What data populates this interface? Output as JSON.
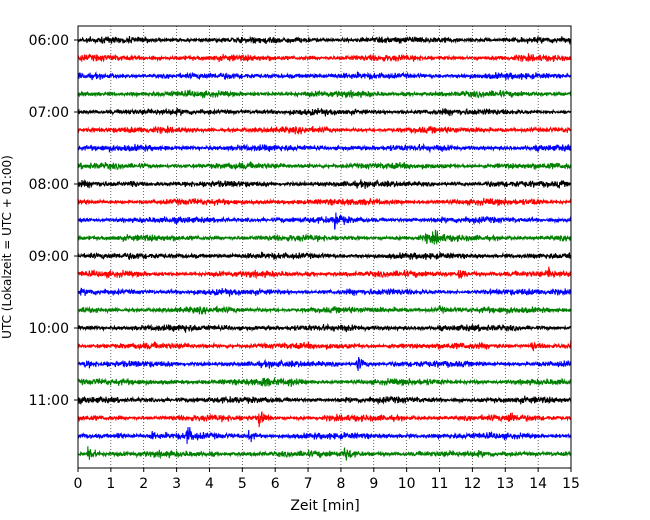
{
  "chart_data": {
    "type": "line",
    "title": "",
    "xlabel": "Zeit  [min]",
    "ylabel": "UTC (Lokalzeit = UTC + 01:00)",
    "xlim": [
      0,
      15
    ],
    "x_ticks": [
      "0",
      "1",
      "2",
      "3",
      "4",
      "5",
      "6",
      "7",
      "8",
      "9",
      "10",
      "11",
      "12",
      "13",
      "14",
      "15"
    ],
    "y_ticks": [
      "06:00",
      "07:00",
      "08:00",
      "09:00",
      "10:00",
      "11:00"
    ],
    "grid": "x",
    "trace_interval_min": 15,
    "colors": [
      "#000000",
      "#ff0000",
      "#0000ff",
      "#008000"
    ],
    "series": [
      {
        "start": "06:00",
        "color": "#000000",
        "events": []
      },
      {
        "start": "06:15",
        "color": "#ff0000",
        "events": []
      },
      {
        "start": "06:30",
        "color": "#0000ff",
        "events": []
      },
      {
        "start": "06:45",
        "color": "#008000",
        "events": []
      },
      {
        "start": "07:00",
        "color": "#000000",
        "events": []
      },
      {
        "start": "07:15",
        "color": "#ff0000",
        "events": []
      },
      {
        "start": "07:30",
        "color": "#0000ff",
        "events": []
      },
      {
        "start": "07:45",
        "color": "#008000",
        "events": []
      },
      {
        "start": "08:00",
        "color": "#000000",
        "events": [
          {
            "t": 1.6,
            "amp": 0.35
          },
          {
            "t": 14.6,
            "amp": 0.2
          }
        ]
      },
      {
        "start": "08:15",
        "color": "#ff0000",
        "events": [
          {
            "t": 13.8,
            "amp": 0.2
          }
        ]
      },
      {
        "start": "08:30",
        "color": "#0000ff",
        "events": [
          {
            "t": 7.8,
            "amp": 1.0
          }
        ]
      },
      {
        "start": "08:45",
        "color": "#008000",
        "events": [
          {
            "t": 10.6,
            "amp": 0.55
          },
          {
            "t": 10.85,
            "amp": 0.5
          }
        ]
      },
      {
        "start": "09:00",
        "color": "#000000",
        "events": []
      },
      {
        "start": "09:15",
        "color": "#ff0000",
        "events": [
          {
            "t": 11.6,
            "amp": 0.6
          },
          {
            "t": 14.3,
            "amp": 0.45
          }
        ]
      },
      {
        "start": "09:30",
        "color": "#0000ff",
        "events": []
      },
      {
        "start": "09:45",
        "color": "#008000",
        "events": [
          {
            "t": 11.0,
            "amp": 0.3
          }
        ]
      },
      {
        "start": "10:00",
        "color": "#000000",
        "events": [
          {
            "t": 3.2,
            "amp": 0.25
          }
        ]
      },
      {
        "start": "10:15",
        "color": "#ff0000",
        "events": [
          {
            "t": 13.8,
            "amp": 0.55
          },
          {
            "t": 15.0,
            "amp": 0.5
          }
        ]
      },
      {
        "start": "10:30",
        "color": "#0000ff",
        "events": [
          {
            "t": 0.2,
            "amp": 0.35
          },
          {
            "t": 8.5,
            "amp": 0.9
          }
        ]
      },
      {
        "start": "10:45",
        "color": "#008000",
        "events": [
          {
            "t": 5.6,
            "amp": 0.4
          },
          {
            "t": 6.4,
            "amp": 0.4
          }
        ]
      },
      {
        "start": "11:00",
        "color": "#000000",
        "events": []
      },
      {
        "start": "11:15",
        "color": "#ff0000",
        "events": [
          {
            "t": 5.5,
            "amp": 0.9
          },
          {
            "t": 13.1,
            "amp": 0.55
          }
        ]
      },
      {
        "start": "11:30",
        "color": "#0000ff",
        "events": [
          {
            "t": 1.2,
            "amp": 0.35
          },
          {
            "t": 2.2,
            "amp": 0.35
          },
          {
            "t": 3.3,
            "amp": 1.0
          },
          {
            "t": 5.2,
            "amp": 0.6
          }
        ]
      },
      {
        "start": "11:45",
        "color": "#008000",
        "events": [
          {
            "t": 0.3,
            "amp": 1.0
          },
          {
            "t": 8.1,
            "amp": 0.75
          }
        ]
      }
    ]
  }
}
